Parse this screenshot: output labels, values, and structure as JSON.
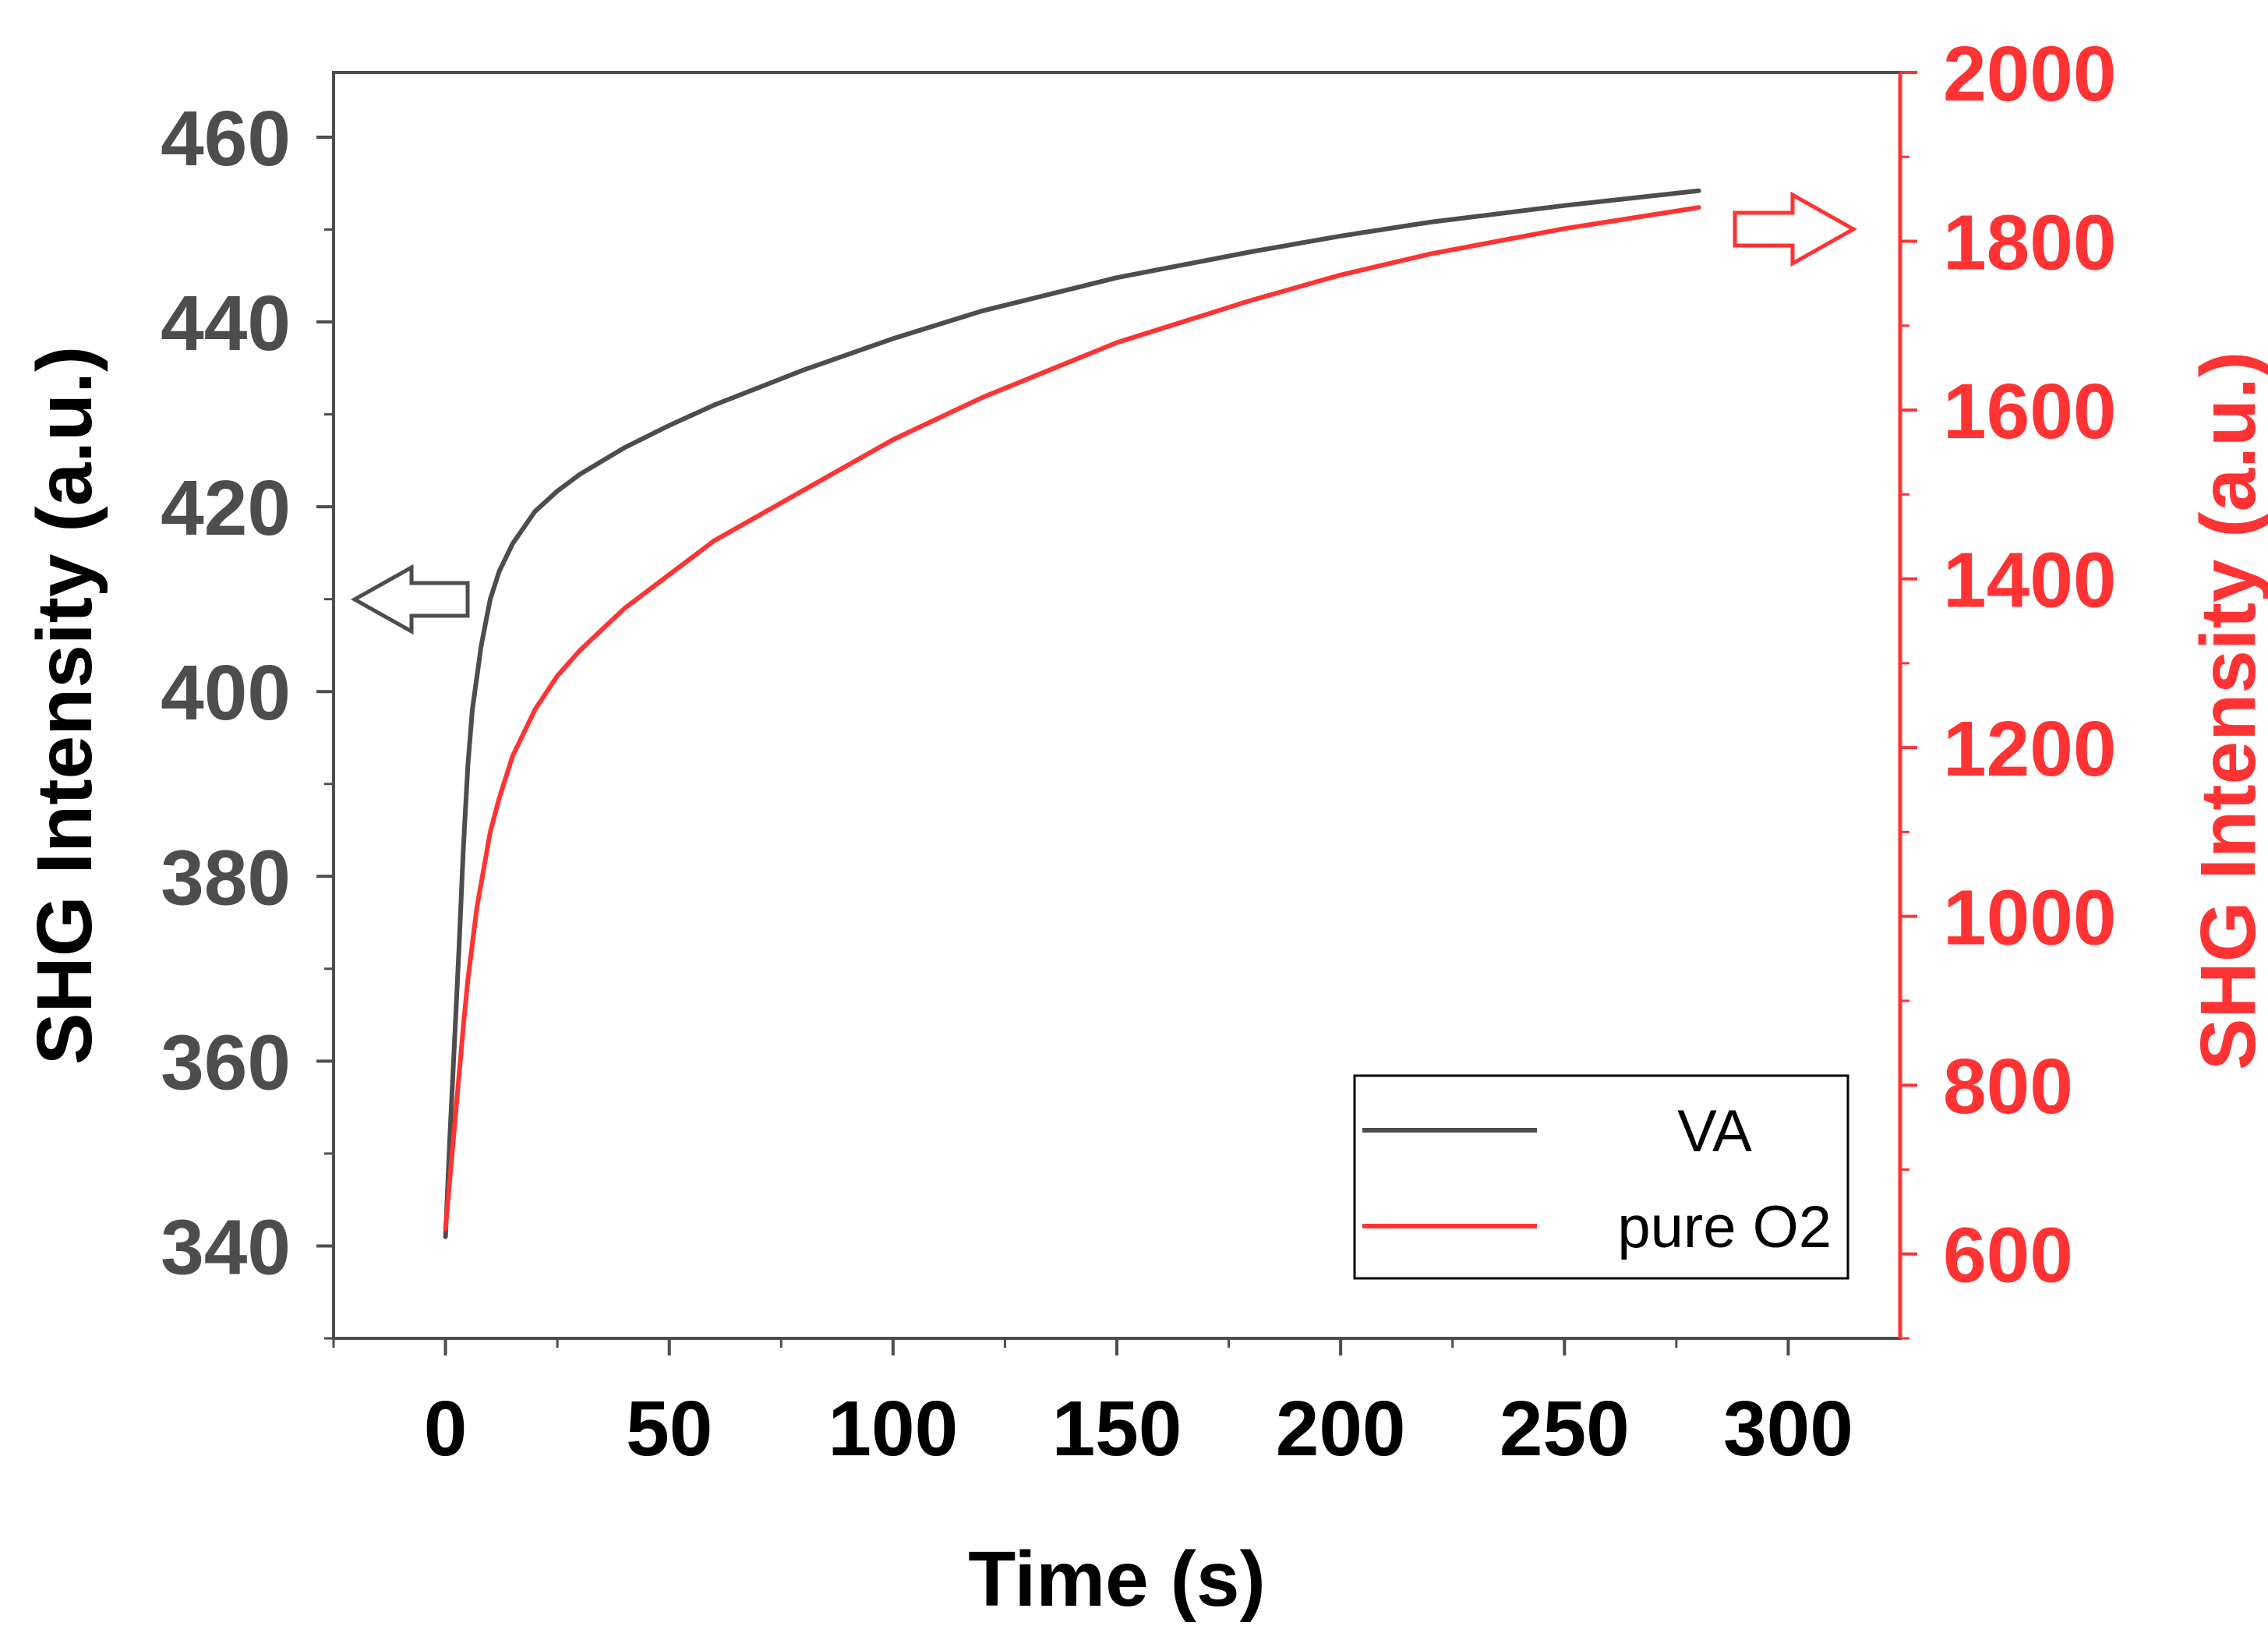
{
  "chart_data": {
    "type": "line",
    "title": "",
    "xlabel": "Time (s)",
    "xlim": [
      -25,
      325
    ],
    "xticks": [
      0,
      50,
      100,
      150,
      200,
      250,
      300
    ],
    "y_left": {
      "label": "SHG Intensity (a.u.)",
      "lim": [
        330,
        467
      ],
      "ticks": [
        340,
        360,
        380,
        400,
        420,
        440,
        460
      ],
      "color": "#4d4d4d"
    },
    "y_right": {
      "label": "SHG Intensity (a.u.)",
      "lim": [
        500,
        2000
      ],
      "ticks": [
        600,
        800,
        1000,
        1200,
        1400,
        1600,
        1800,
        2000
      ],
      "color": "#ff3333"
    },
    "legend_position": "bottom-right",
    "series": [
      {
        "name": "VA",
        "axis": "left",
        "color": "#4d4d4d",
        "x": [
          0,
          1,
          2,
          3,
          4,
          5,
          6,
          8,
          10,
          12,
          15,
          20,
          25,
          30,
          40,
          50,
          60,
          80,
          100,
          120,
          150,
          180,
          200,
          220,
          250,
          280
        ],
        "y": [
          341,
          352,
          362,
          372,
          383,
          392,
          398,
          405,
          410,
          413,
          416,
          419.5,
          421.7,
          423.5,
          426.4,
          428.8,
          431,
          434.8,
          438.2,
          441.2,
          444.8,
          447.6,
          449.3,
          450.8,
          452.6,
          454.2
        ]
      },
      {
        "name": "pure O2",
        "axis": "right",
        "color": "#ff3333",
        "x": [
          0,
          1,
          2,
          3,
          4,
          5,
          7,
          10,
          12,
          15,
          20,
          25,
          30,
          40,
          50,
          60,
          80,
          100,
          120,
          150,
          180,
          200,
          220,
          250,
          280
        ],
        "y": [
          630,
          690,
          750,
          810,
          870,
          925,
          1010,
          1100,
          1140,
          1190,
          1245,
          1285,
          1315,
          1365,
          1405,
          1445,
          1505,
          1565,
          1615,
          1680,
          1730,
          1760,
          1785,
          1815,
          1840
        ]
      }
    ]
  }
}
